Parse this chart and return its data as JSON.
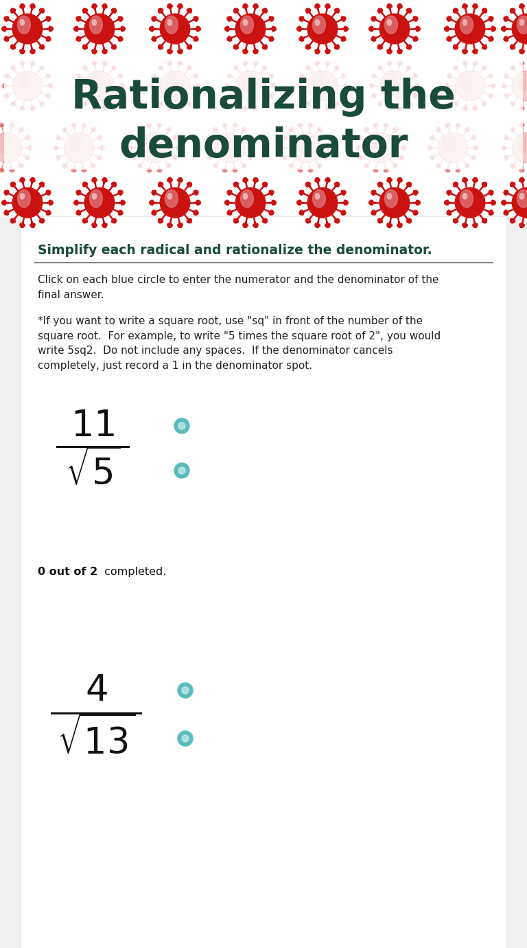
{
  "title_line1": "Rationalizing the",
  "title_line2": "denominator",
  "title_color": "#1a4a3a",
  "subtitle": "Simplify each radical and rationalize the denominator.",
  "subtitle_color": "#1a4a3a",
  "instruction1": "Click on each blue circle to enter the numerator and the denominator of the\nfinal answer.",
  "instruction2": "*If you want to write a square root, use \"sq\" in front of the number of the\nsquare root.  For example, to write \"5 times the square root of 2\", you would\nwrite 5sq2.  Do not include any spaces.  If the denominator cancels\ncompletely, just record a 1 in the denominator spot.",
  "progress_bold": "0 out of 2",
  "progress_normal": " completed.",
  "circle_color": "#5bbcbc",
  "circle_border": "#3a9090",
  "virus_dark": "#cc1111",
  "virus_light": "#e08080",
  "virus_highlight": "#f0c0c0",
  "header_bg": "#ffffff",
  "body_bg": "#f0f0f0",
  "content_bg": "#ffffff",
  "fig_w": 7.68,
  "fig_h": 13.8,
  "dpi": 100
}
